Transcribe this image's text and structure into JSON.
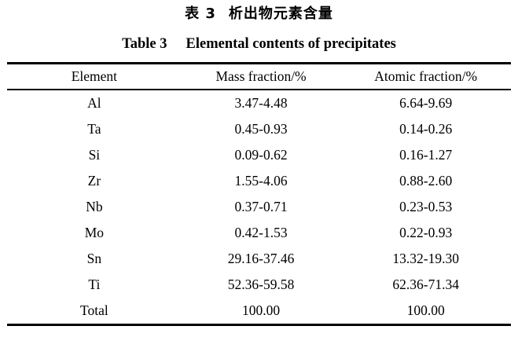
{
  "title_zh": {
    "label": "表 3",
    "text": "析出物元素含量"
  },
  "title_en": {
    "label": "Table 3",
    "text": "Elemental contents of precipitates"
  },
  "table": {
    "columns": [
      "Element",
      "Mass fraction/%",
      "Atomic fraction/%"
    ],
    "rows": [
      [
        "Al",
        "3.47-4.48",
        "6.64-9.69"
      ],
      [
        "Ta",
        "0.45-0.93",
        "0.14-0.26"
      ],
      [
        "Si",
        "0.09-0.62",
        "0.16-1.27"
      ],
      [
        "Zr",
        "1.55-4.06",
        "0.88-2.60"
      ],
      [
        "Nb",
        "0.37-0.71",
        "0.23-0.53"
      ],
      [
        "Mo",
        "0.42-1.53",
        "0.22-0.93"
      ],
      [
        "Sn",
        "29.16-37.46",
        "13.32-19.30"
      ],
      [
        "Ti",
        "52.36-59.58",
        "62.36-71.34"
      ],
      [
        "Total",
        "100.00",
        "100.00"
      ]
    ]
  },
  "colors": {
    "text": "#000000",
    "background": "#ffffff",
    "rule": "#000000"
  }
}
